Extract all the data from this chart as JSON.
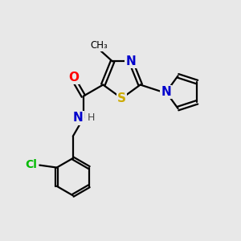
{
  "background_color": "#e8e8e8",
  "bond_color": "#000000",
  "atom_colors": {
    "N": "#0000cc",
    "S": "#ccaa00",
    "O": "#ff0000",
    "Cl": "#00bb00",
    "C": "#000000",
    "H": "#444444"
  },
  "font_size": 10,
  "lw": 1.6
}
